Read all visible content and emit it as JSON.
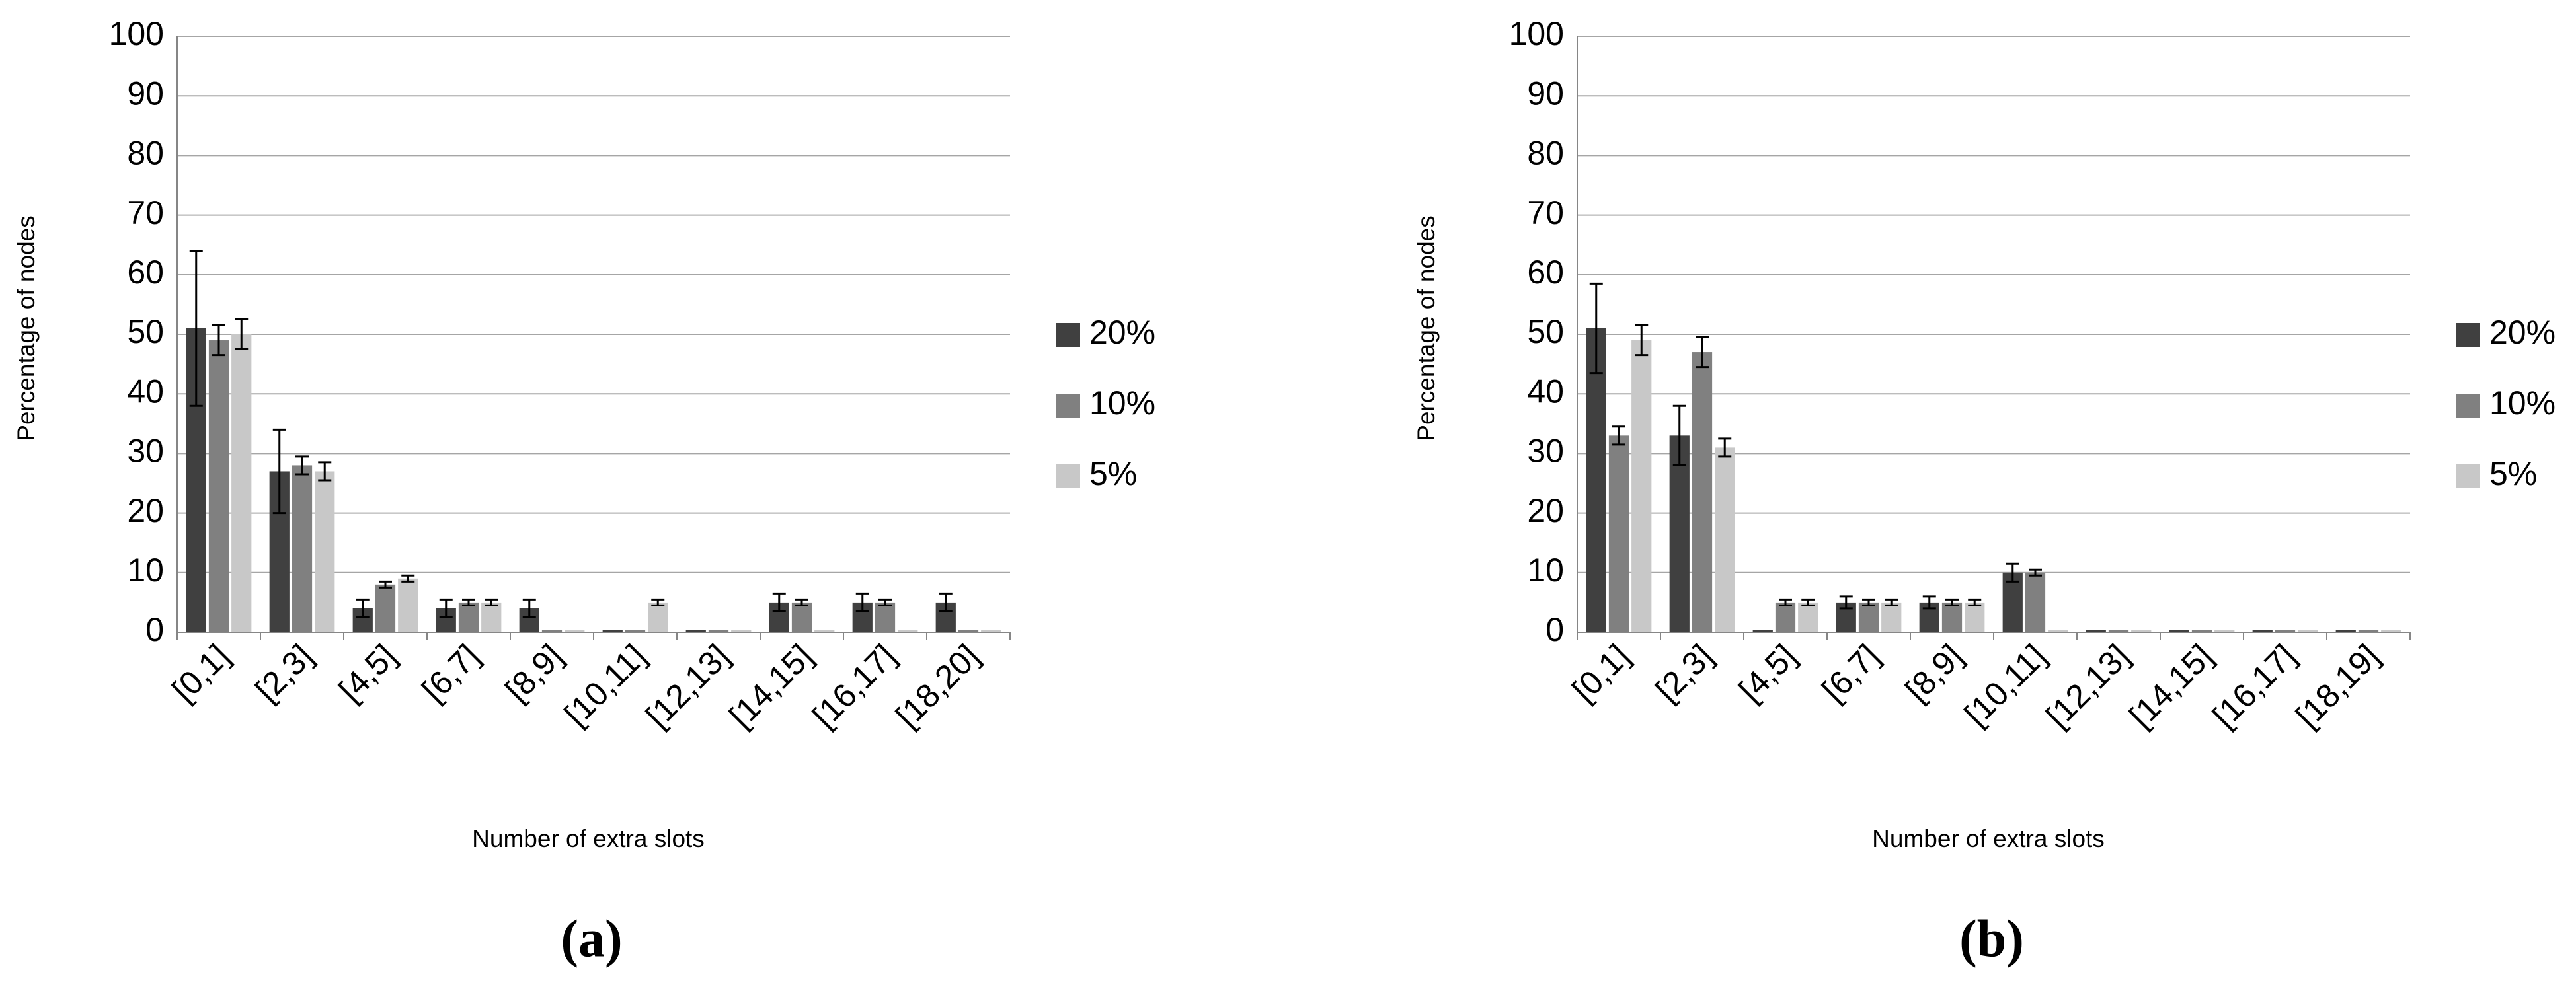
{
  "chart_data": [
    {
      "type": "bar",
      "label": "(a)",
      "y_label": "Percentage of nodes",
      "x_label": "Number of extra slots",
      "categories": [
        "[0,1]",
        "[2,3]",
        "[4,5]",
        "[6,7]",
        "[8,9]",
        "[10,11]",
        "[12,13]",
        "[14,15]",
        "[16,17]",
        "[18,20]"
      ],
      "series": [
        {
          "name": "20%",
          "color": "#404040",
          "values": [
            51,
            27,
            4,
            4,
            4,
            0,
            0,
            5,
            5,
            5
          ],
          "errors": [
            13,
            7,
            1.5,
            1.5,
            1.5,
            0,
            0,
            1.5,
            1.5,
            1.5
          ]
        },
        {
          "name": "10%",
          "color": "#808080",
          "values": [
            49,
            28,
            8,
            5,
            0,
            0,
            0,
            5,
            5,
            0
          ],
          "errors": [
            2.5,
            1.5,
            0.5,
            0.5,
            0,
            0,
            0,
            0.5,
            0.5,
            0
          ]
        },
        {
          "name": "5%",
          "color": "#c8c8c8",
          "values": [
            50,
            27,
            9,
            5,
            0,
            5,
            0,
            0,
            0,
            0
          ],
          "errors": [
            2.5,
            1.5,
            0.5,
            0.5,
            0,
            0.5,
            0,
            0,
            0,
            0
          ]
        }
      ],
      "ylim": [
        0,
        100
      ],
      "yticks": [
        0,
        10,
        20,
        30,
        40,
        50,
        60,
        70,
        80,
        90,
        100
      ],
      "grid": true,
      "legend": "right"
    },
    {
      "type": "bar",
      "label": "(b)",
      "y_label": "Percentage of nodes",
      "x_label": "Number of extra slots",
      "categories": [
        "[0,1]",
        "[2,3]",
        "[4,5]",
        "[6,7]",
        "[8,9]",
        "[10,11]",
        "[12,13]",
        "[14,15]",
        "[16,17]",
        "[18,19]"
      ],
      "series": [
        {
          "name": "20%",
          "color": "#404040",
          "values": [
            51,
            33,
            0,
            5,
            5,
            10,
            0,
            0,
            0,
            0
          ],
          "errors": [
            7.5,
            5,
            0,
            1,
            1,
            1.5,
            0,
            0,
            0,
            0
          ]
        },
        {
          "name": "10%",
          "color": "#808080",
          "values": [
            33,
            47,
            5,
            5,
            5,
            10,
            0,
            0,
            0,
            0
          ],
          "errors": [
            1.5,
            2.5,
            0.5,
            0.5,
            0.5,
            0.5,
            0,
            0,
            0,
            0
          ]
        },
        {
          "name": "5%",
          "color": "#c8c8c8",
          "values": [
            49,
            31,
            5,
            5,
            5,
            0,
            0,
            0,
            0,
            0
          ],
          "errors": [
            2.5,
            1.5,
            0.5,
            0.5,
            0.5,
            0,
            0,
            0,
            0,
            0
          ]
        }
      ],
      "ylim": [
        0,
        100
      ],
      "yticks": [
        0,
        10,
        20,
        30,
        40,
        50,
        60,
        70,
        80,
        90,
        100
      ],
      "grid": true,
      "legend": "right"
    }
  ]
}
